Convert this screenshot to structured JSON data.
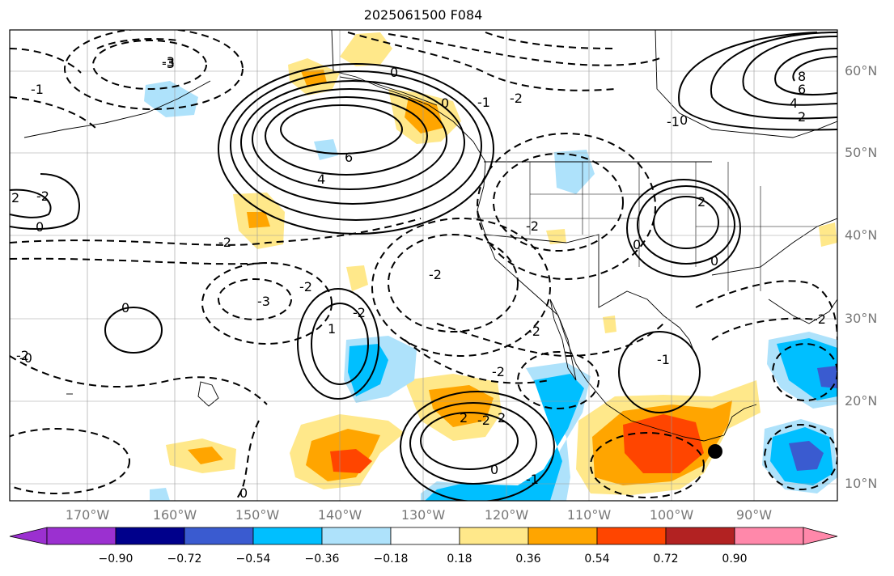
{
  "title": "2025061500 F084",
  "lat_labels": [
    "60°N",
    "50°N",
    "40°N",
    "30°N",
    "20°N",
    "10°N"
  ],
  "lon_labels": [
    "170°W",
    "160°W",
    "150°W",
    "140°W",
    "130°W",
    "120°W",
    "110°W",
    "100°W",
    "90°W"
  ],
  "colorbar": {
    "tick_labels": [
      "−0.90",
      "−0.72",
      "−0.54",
      "−0.36",
      "−0.18",
      "0.18",
      "0.36",
      "0.54",
      "0.72",
      "0.90"
    ],
    "colors": [
      "#9b30d0",
      "#00008b",
      "#3a5bd0",
      "#00bfff",
      "#aee2fb",
      "#ffffff",
      "#ffe88a",
      "#ffa500",
      "#ff4500",
      "#b22222",
      "#ff88aa"
    ]
  },
  "contour_labels": [
    "-3",
    "-3",
    "-1",
    "-2",
    "-2",
    "0",
    "-1",
    "-2",
    "-2",
    "-2",
    "0",
    "-2",
    "-3",
    "-2",
    "6",
    "4",
    "0",
    "-2",
    "-2",
    "2",
    "-1",
    "1",
    "-2",
    "-2",
    "-2",
    "2",
    "2",
    "0",
    "-1",
    "0",
    "8",
    "6",
    "4",
    "2",
    "-1",
    "0",
    "2",
    "0",
    "0",
    "0",
    "-0"
  ],
  "marker": "black-dot"
}
